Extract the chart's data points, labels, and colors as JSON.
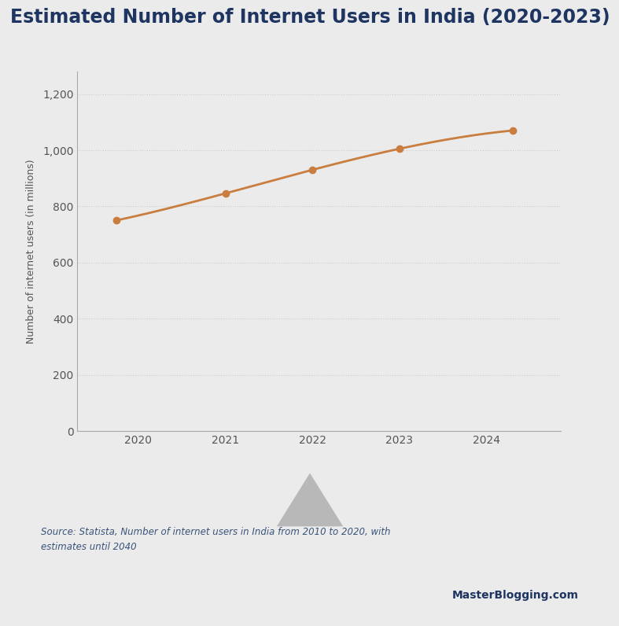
{
  "title": "Estimated Number of Internet Users in India (2020-2023)",
  "x_values": [
    2019.75,
    2021.0,
    2022.0,
    2023.0,
    2024.3
  ],
  "y_values": [
    750,
    846,
    930,
    1005,
    1070
  ],
  "line_color": "#C97D3E",
  "marker_color": "#C97D3E",
  "marker_size": 6,
  "line_width": 2.0,
  "ylabel": "Number of internet users (in millions)",
  "yticks": [
    0,
    200,
    400,
    600,
    800,
    1000,
    1200
  ],
  "xticks": [
    2020,
    2021,
    2022,
    2023,
    2024
  ],
  "xlim": [
    2019.3,
    2024.85
  ],
  "ylim": [
    0,
    1280
  ],
  "grid_color": "#cccccc",
  "grid_style": ":",
  "bg_main": "#ebebeb",
  "bg_chart": "#ebebeb",
  "bg_footer": "#d0d0d0",
  "title_color": "#1e3461",
  "axis_label_color": "#555555",
  "tick_label_color": "#555555",
  "source_text": "Source: Statista, Number of internet users in India from 2010 to 2020, with\nestimates until 2040",
  "source_color": "#3a537a",
  "brand_text": "MasterBlogging.com",
  "brand_color": "#1e3461",
  "title_fontsize": 17,
  "ylabel_fontsize": 9,
  "tick_fontsize": 10,
  "source_fontsize": 8.5,
  "brand_fontsize": 10,
  "triangle_color": "#b8b8b8",
  "spine_color": "#aaaaaa"
}
